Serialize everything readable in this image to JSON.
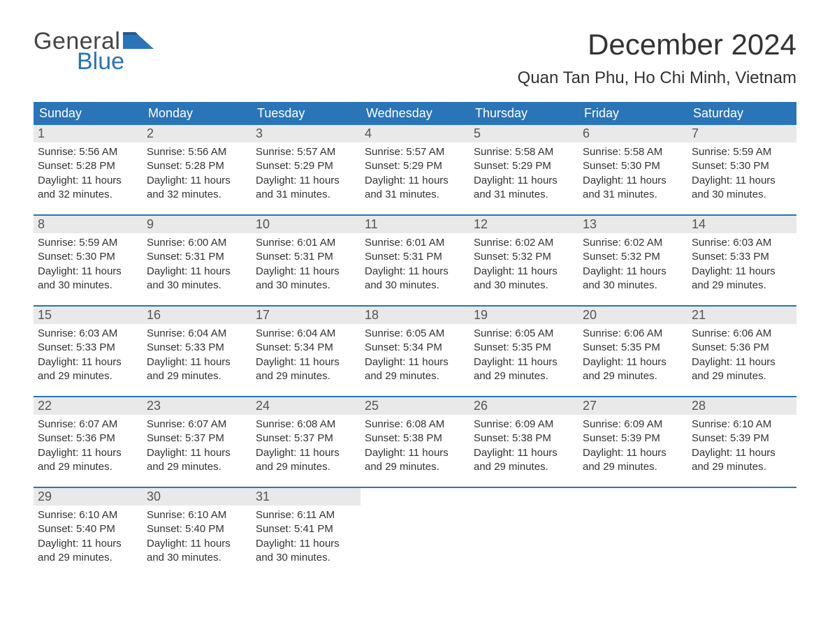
{
  "brand": {
    "text1": "General",
    "text2": "Blue",
    "accent": "#2a74b8"
  },
  "title": "December 2024",
  "location": "Quan Tan Phu, Ho Chi Minh, Vietnam",
  "weekdays": [
    "Sunday",
    "Monday",
    "Tuesday",
    "Wednesday",
    "Thursday",
    "Friday",
    "Saturday"
  ],
  "colors": {
    "header_bg": "#2a74b8",
    "header_text": "#ffffff",
    "daynum_bg": "#e9e9e9",
    "row_divider": "#2a74b8",
    "body_text": "#333333",
    "background": "#ffffff"
  },
  "fonts": {
    "title_size_pt": 32,
    "location_size_pt": 18,
    "weekday_size_pt": 14,
    "daynum_size_pt": 14,
    "body_size_pt": 11
  },
  "weeks": [
    [
      {
        "n": "1",
        "sunrise": "5:56 AM",
        "sunset": "5:28 PM",
        "dl1": "11 hours",
        "dl2": "32 minutes"
      },
      {
        "n": "2",
        "sunrise": "5:56 AM",
        "sunset": "5:28 PM",
        "dl1": "11 hours",
        "dl2": "32 minutes"
      },
      {
        "n": "3",
        "sunrise": "5:57 AM",
        "sunset": "5:29 PM",
        "dl1": "11 hours",
        "dl2": "31 minutes"
      },
      {
        "n": "4",
        "sunrise": "5:57 AM",
        "sunset": "5:29 PM",
        "dl1": "11 hours",
        "dl2": "31 minutes"
      },
      {
        "n": "5",
        "sunrise": "5:58 AM",
        "sunset": "5:29 PM",
        "dl1": "11 hours",
        "dl2": "31 minutes"
      },
      {
        "n": "6",
        "sunrise": "5:58 AM",
        "sunset": "5:30 PM",
        "dl1": "11 hours",
        "dl2": "31 minutes"
      },
      {
        "n": "7",
        "sunrise": "5:59 AM",
        "sunset": "5:30 PM",
        "dl1": "11 hours",
        "dl2": "30 minutes"
      }
    ],
    [
      {
        "n": "8",
        "sunrise": "5:59 AM",
        "sunset": "5:30 PM",
        "dl1": "11 hours",
        "dl2": "30 minutes"
      },
      {
        "n": "9",
        "sunrise": "6:00 AM",
        "sunset": "5:31 PM",
        "dl1": "11 hours",
        "dl2": "30 minutes"
      },
      {
        "n": "10",
        "sunrise": "6:01 AM",
        "sunset": "5:31 PM",
        "dl1": "11 hours",
        "dl2": "30 minutes"
      },
      {
        "n": "11",
        "sunrise": "6:01 AM",
        "sunset": "5:31 PM",
        "dl1": "11 hours",
        "dl2": "30 minutes"
      },
      {
        "n": "12",
        "sunrise": "6:02 AM",
        "sunset": "5:32 PM",
        "dl1": "11 hours",
        "dl2": "30 minutes"
      },
      {
        "n": "13",
        "sunrise": "6:02 AM",
        "sunset": "5:32 PM",
        "dl1": "11 hours",
        "dl2": "30 minutes"
      },
      {
        "n": "14",
        "sunrise": "6:03 AM",
        "sunset": "5:33 PM",
        "dl1": "11 hours",
        "dl2": "29 minutes"
      }
    ],
    [
      {
        "n": "15",
        "sunrise": "6:03 AM",
        "sunset": "5:33 PM",
        "dl1": "11 hours",
        "dl2": "29 minutes"
      },
      {
        "n": "16",
        "sunrise": "6:04 AM",
        "sunset": "5:33 PM",
        "dl1": "11 hours",
        "dl2": "29 minutes"
      },
      {
        "n": "17",
        "sunrise": "6:04 AM",
        "sunset": "5:34 PM",
        "dl1": "11 hours",
        "dl2": "29 minutes"
      },
      {
        "n": "18",
        "sunrise": "6:05 AM",
        "sunset": "5:34 PM",
        "dl1": "11 hours",
        "dl2": "29 minutes"
      },
      {
        "n": "19",
        "sunrise": "6:05 AM",
        "sunset": "5:35 PM",
        "dl1": "11 hours",
        "dl2": "29 minutes"
      },
      {
        "n": "20",
        "sunrise": "6:06 AM",
        "sunset": "5:35 PM",
        "dl1": "11 hours",
        "dl2": "29 minutes"
      },
      {
        "n": "21",
        "sunrise": "6:06 AM",
        "sunset": "5:36 PM",
        "dl1": "11 hours",
        "dl2": "29 minutes"
      }
    ],
    [
      {
        "n": "22",
        "sunrise": "6:07 AM",
        "sunset": "5:36 PM",
        "dl1": "11 hours",
        "dl2": "29 minutes"
      },
      {
        "n": "23",
        "sunrise": "6:07 AM",
        "sunset": "5:37 PM",
        "dl1": "11 hours",
        "dl2": "29 minutes"
      },
      {
        "n": "24",
        "sunrise": "6:08 AM",
        "sunset": "5:37 PM",
        "dl1": "11 hours",
        "dl2": "29 minutes"
      },
      {
        "n": "25",
        "sunrise": "6:08 AM",
        "sunset": "5:38 PM",
        "dl1": "11 hours",
        "dl2": "29 minutes"
      },
      {
        "n": "26",
        "sunrise": "6:09 AM",
        "sunset": "5:38 PM",
        "dl1": "11 hours",
        "dl2": "29 minutes"
      },
      {
        "n": "27",
        "sunrise": "6:09 AM",
        "sunset": "5:39 PM",
        "dl1": "11 hours",
        "dl2": "29 minutes"
      },
      {
        "n": "28",
        "sunrise": "6:10 AM",
        "sunset": "5:39 PM",
        "dl1": "11 hours",
        "dl2": "29 minutes"
      }
    ],
    [
      {
        "n": "29",
        "sunrise": "6:10 AM",
        "sunset": "5:40 PM",
        "dl1": "11 hours",
        "dl2": "29 minutes"
      },
      {
        "n": "30",
        "sunrise": "6:10 AM",
        "sunset": "5:40 PM",
        "dl1": "11 hours",
        "dl2": "30 minutes"
      },
      {
        "n": "31",
        "sunrise": "6:11 AM",
        "sunset": "5:41 PM",
        "dl1": "11 hours",
        "dl2": "30 minutes"
      },
      null,
      null,
      null,
      null
    ]
  ],
  "labels": {
    "sunrise_prefix": "Sunrise: ",
    "sunset_prefix": "Sunset: ",
    "daylight_prefix": "Daylight: ",
    "and": "and "
  }
}
